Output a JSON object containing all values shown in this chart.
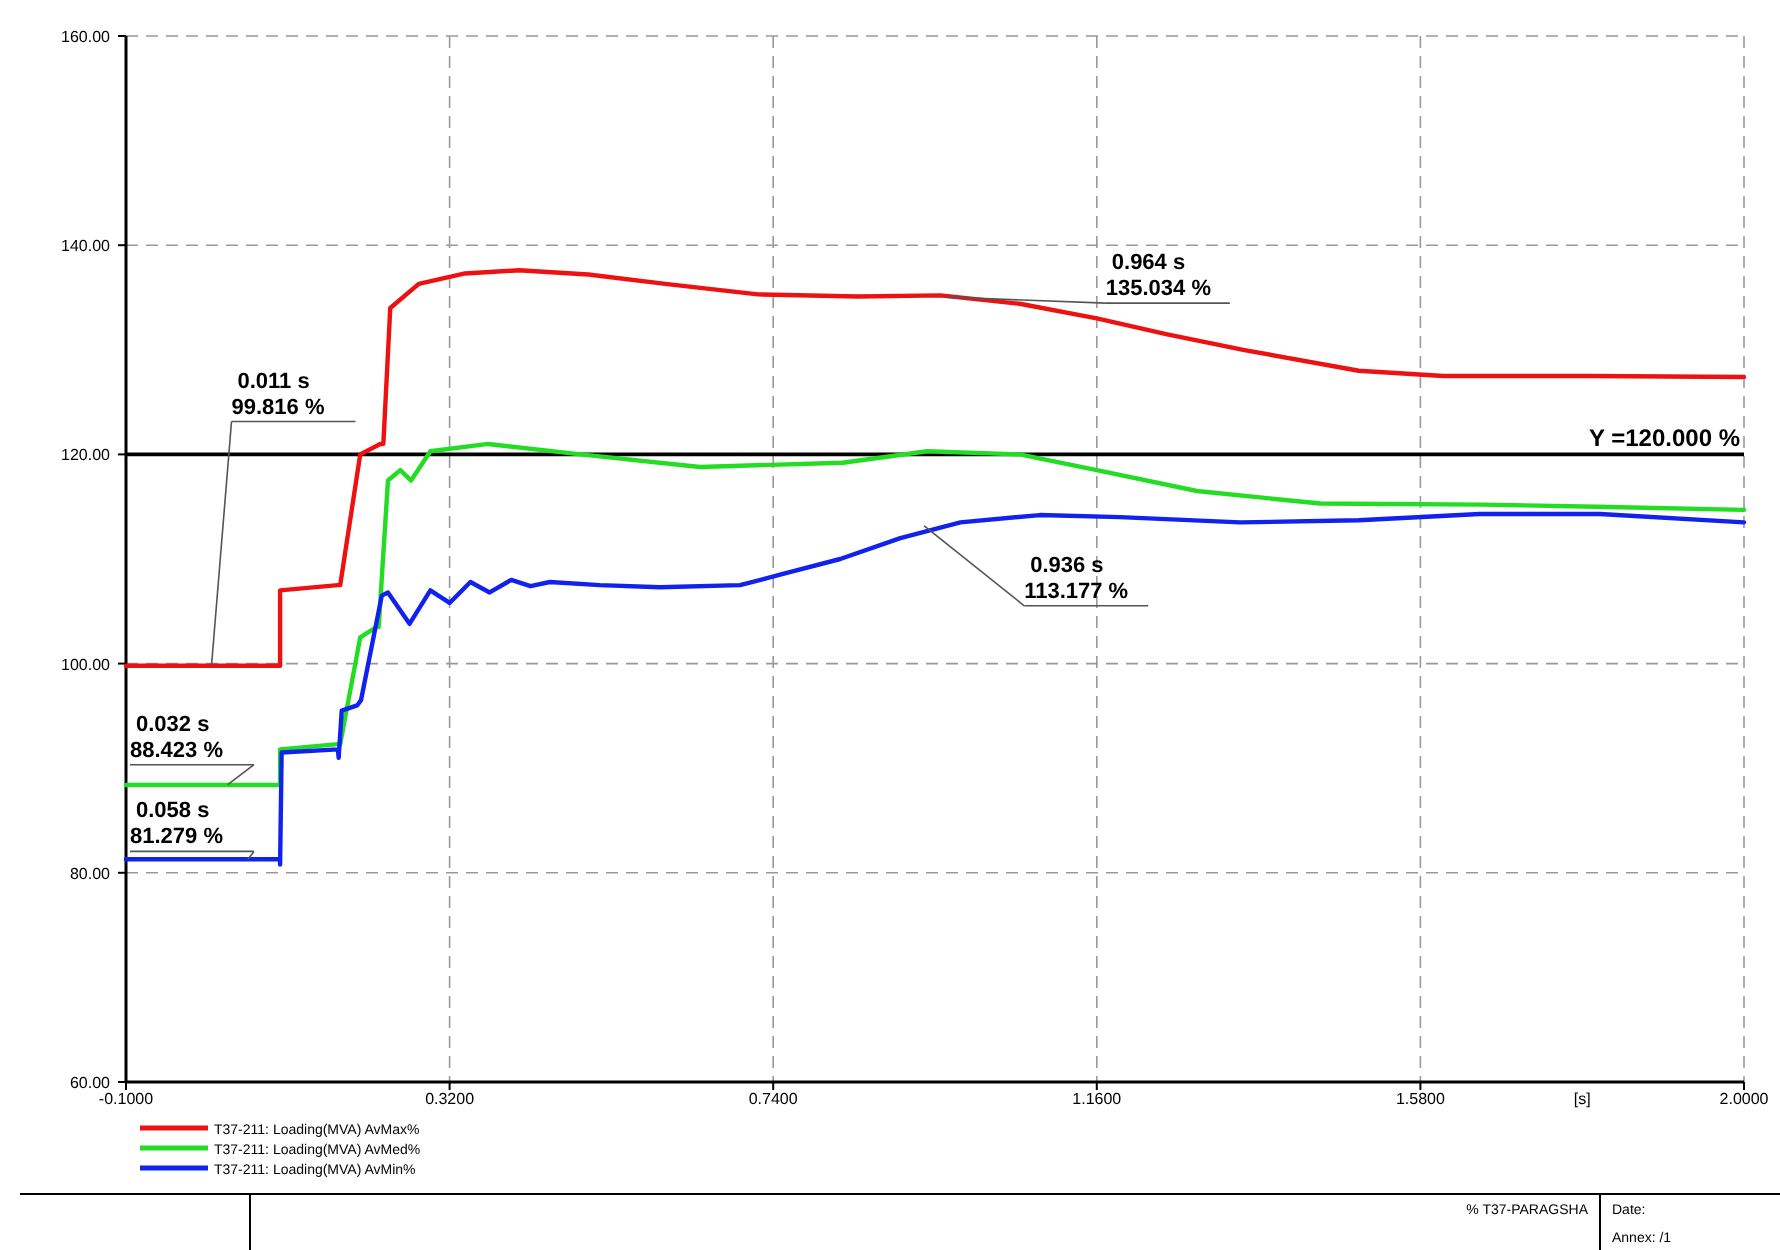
{
  "chart_data": {
    "type": "line",
    "xlabel": "[s]",
    "xlim": [
      -0.1,
      2.0
    ],
    "ylim": [
      60,
      160
    ],
    "xticks": [
      {
        "value": -0.1,
        "label": "-0.1000"
      },
      {
        "value": 0.32,
        "label": "0.3200"
      },
      {
        "value": 0.74,
        "label": "0.7400"
      },
      {
        "value": 1.16,
        "label": "1.1600"
      },
      {
        "value": 1.58,
        "label": "1.5800"
      },
      {
        "value": 2.0,
        "label": "2.0000"
      }
    ],
    "yticks": [
      {
        "value": 60,
        "label": "60.00"
      },
      {
        "value": 80,
        "label": "80.00"
      },
      {
        "value": 100,
        "label": "100.00"
      },
      {
        "value": 120,
        "label": "120.00"
      },
      {
        "value": 140,
        "label": "140.00"
      },
      {
        "value": 160,
        "label": "160.00"
      }
    ],
    "grid": true,
    "legend": "bottom",
    "marker": "none",
    "line_style": "solid",
    "series": [
      {
        "name": "T37-211: Loading(MVA) AvMax%",
        "color": "#ee1111",
        "x": [
          -0.1,
          0.1,
          0.1,
          0.175,
          0.178,
          0.204,
          0.23,
          0.234,
          0.243,
          0.28,
          0.34,
          0.41,
          0.5,
          0.6,
          0.72,
          0.85,
          0.957,
          1.06,
          1.16,
          1.25,
          1.35,
          1.5,
          1.61,
          1.8,
          2.0
        ],
        "values": [
          99.8,
          99.8,
          107,
          107.5,
          107.5,
          120,
          121,
          121,
          134,
          136.3,
          137.3,
          137.6,
          137.2,
          136.3,
          135.3,
          135.1,
          135.2,
          134.4,
          133,
          131.5,
          130,
          128,
          127.5,
          127.5,
          127.4
        ]
      },
      {
        "name": "T37-211: Loading(MVA) AvMed%",
        "color": "#22dd22",
        "x": [
          -0.1,
          0.1,
          0.1,
          0.175,
          0.178,
          0.204,
          0.225,
          0.228,
          0.24,
          0.256,
          0.27,
          0.295,
          0.37,
          0.49,
          0.645,
          0.83,
          0.94,
          1.06,
          1.16,
          1.29,
          1.45,
          1.66,
          1.81,
          2.0
        ],
        "values": [
          88.4,
          88.4,
          91.8,
          92.3,
          92.3,
          102.5,
          103.5,
          103.5,
          117.5,
          118.5,
          117.5,
          120.3,
          121,
          120,
          118.8,
          119.2,
          120.3,
          120,
          118.5,
          116.5,
          115.3,
          115.2,
          115,
          114.7
        ]
      },
      {
        "name": "T37-211: Loading(MVA) AvMin%",
        "color": "#1122ee",
        "x": [
          -0.1,
          0.1,
          0.1,
          0.102,
          0.175,
          0.176,
          0.18,
          0.2,
          0.205,
          0.232,
          0.24,
          0.268,
          0.295,
          0.32,
          0.347,
          0.372,
          0.4,
          0.425,
          0.45,
          0.515,
          0.593,
          0.697,
          0.749,
          0.827,
          0.905,
          0.983,
          1.086,
          1.19,
          1.346,
          1.5,
          1.657,
          1.813,
          2.0
        ],
        "values": [
          81.3,
          81.3,
          80.8,
          91.5,
          91.8,
          91,
          95.5,
          96,
          96.5,
          106.5,
          106.8,
          103.8,
          107,
          105.8,
          107.8,
          106.8,
          108,
          107.4,
          107.8,
          107.5,
          107.3,
          107.5,
          108.5,
          110,
          112,
          113.5,
          114.2,
          114,
          113.5,
          113.7,
          114.3,
          114.3,
          113.5
        ]
      }
    ],
    "ref_lines": [
      {
        "axis": "y",
        "value": 120,
        "label": "Y =120.000 %",
        "color": "#000000"
      }
    ],
    "annotations": [
      {
        "text": "0.011 s\n99.816 %",
        "x": 0.011,
        "y": 99.816
      },
      {
        "text": "0.032 s\n88.423 %",
        "x": 0.032,
        "y": 88.423
      },
      {
        "text": "0.058 s\n81.279 %",
        "x": 0.058,
        "y": 81.279
      },
      {
        "text": "0.964 s\n135.034 %",
        "x": 0.964,
        "y": 135.034
      },
      {
        "text": "0.936 s\n113.177 %",
        "x": 0.936,
        "y": 113.177
      },
      "% T37-PARAGSHA",
      "Date:",
      "Annex: /1"
    ]
  }
}
